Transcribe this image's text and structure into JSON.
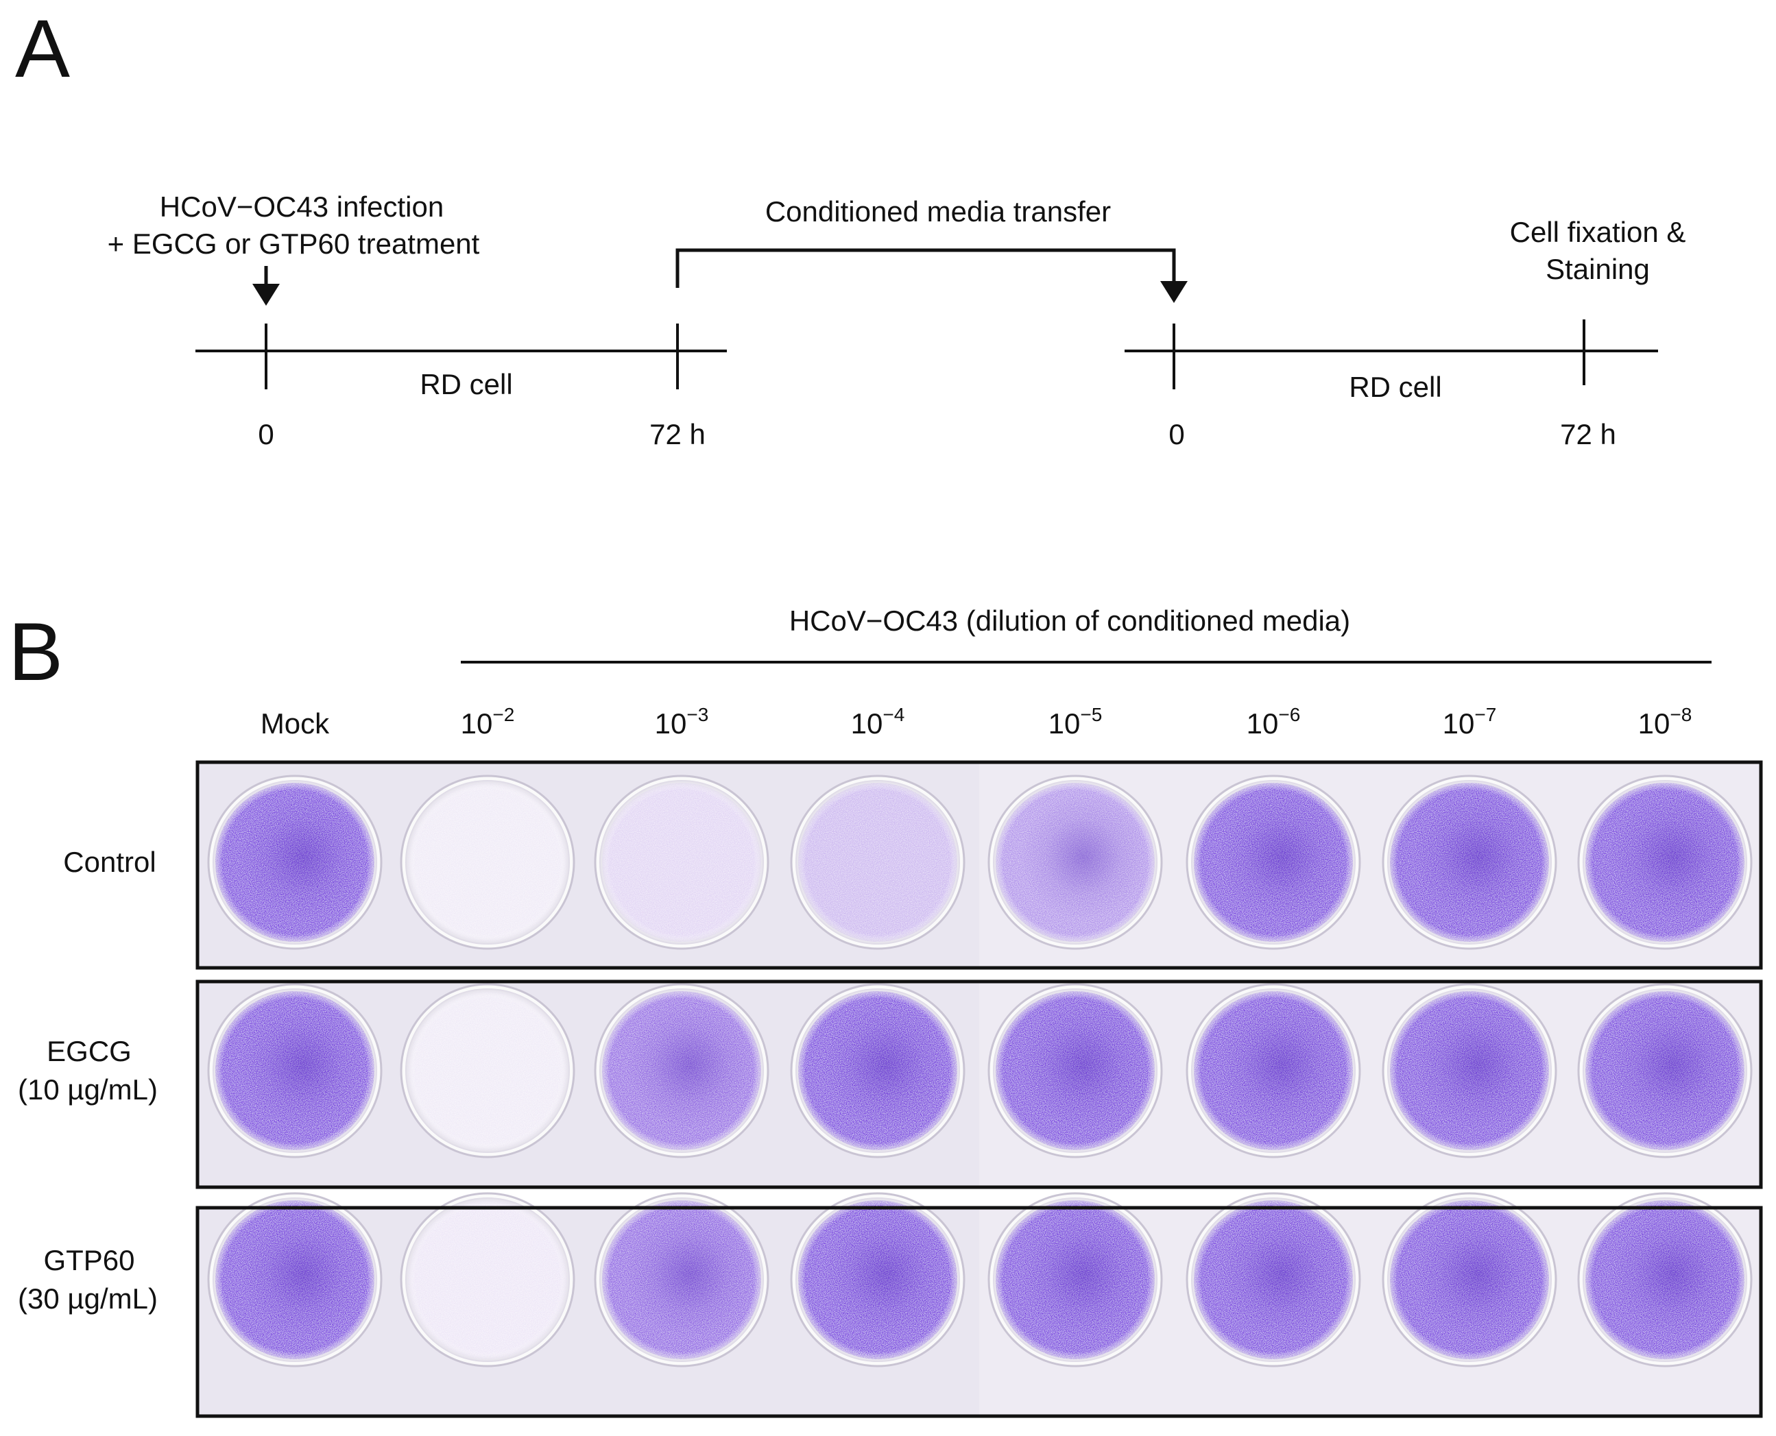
{
  "panel_a": {
    "letter": "A",
    "infection_line1": "HCoV−OC43 infection",
    "infection_line2": "+ EGCG or GTP60 treatment",
    "transfer_label": "Conditioned media transfer",
    "fixation_line1": "Cell fixation &",
    "fixation_line2": "Staining",
    "timeline1": {
      "cell_label": "RD cell",
      "start": "0",
      "end": "72 h"
    },
    "timeline2": {
      "cell_label": "RD cell",
      "start": "0",
      "end": "72 h"
    }
  },
  "panel_b": {
    "letter": "B",
    "header": "HCoV−OC43 (dilution of conditioned media)",
    "columns": [
      {
        "label": "Mock",
        "sup": ""
      },
      {
        "label": "10",
        "sup": "−2"
      },
      {
        "label": "10",
        "sup": "−3"
      },
      {
        "label": "10",
        "sup": "−4"
      },
      {
        "label": "10",
        "sup": "−5"
      },
      {
        "label": "10",
        "sup": "−6"
      },
      {
        "label": "10",
        "sup": "−7"
      },
      {
        "label": "10",
        "sup": "−8"
      }
    ],
    "rows": [
      {
        "line1": "Control",
        "line2": "",
        "stain": [
          1.0,
          0.03,
          0.15,
          0.32,
          0.55,
          1.0,
          1.0,
          1.0
        ]
      },
      {
        "line1": "EGCG",
        "line2": "(10 µg/mL)",
        "stain": [
          1.0,
          0.03,
          0.78,
          1.0,
          1.0,
          1.0,
          1.0,
          1.0
        ]
      },
      {
        "line1": "GTP60",
        "line2": "(30 µg/mL)",
        "stain": [
          1.0,
          0.05,
          0.82,
          1.0,
          1.0,
          1.0,
          1.0,
          1.0
        ]
      }
    ],
    "colors": {
      "stain": "#7b45e0",
      "clear": "#f4f0f8",
      "plate_bg": "#e9e6f0"
    }
  }
}
